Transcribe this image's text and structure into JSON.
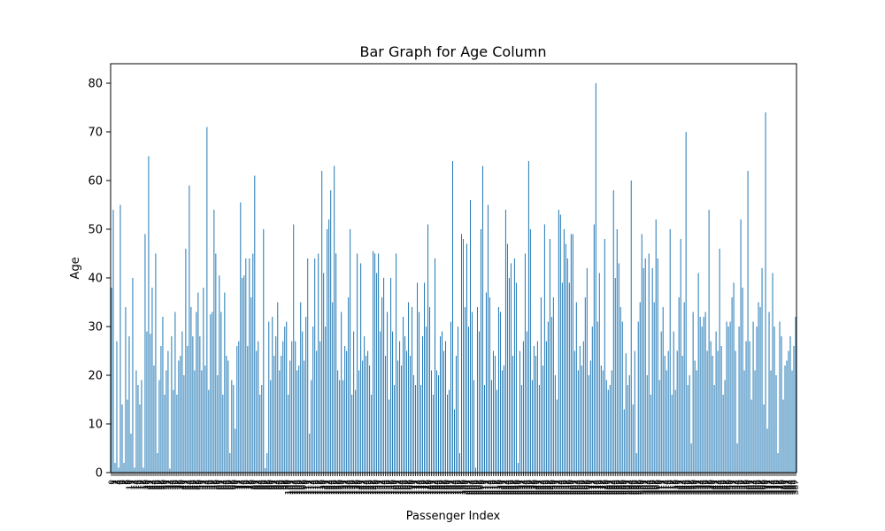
{
  "chart_data": {
    "type": "bar",
    "title": "Bar Graph for Age Column",
    "xlabel": "Passenger Index",
    "ylabel": "Age",
    "ylim": [
      0,
      84
    ],
    "yticks": [
      0,
      10,
      20,
      30,
      40,
      50,
      60,
      70,
      80
    ],
    "grid": false,
    "legend": "none",
    "bar_color": "#1f77b4",
    "series": [
      {
        "values": [
          38,
          54,
          2,
          27,
          1,
          55,
          14,
          2,
          34,
          15,
          28,
          8,
          40,
          1,
          21,
          18,
          14,
          19,
          1,
          49,
          29,
          65,
          28.5,
          38,
          22,
          45,
          4,
          19,
          26,
          32,
          16,
          21,
          25,
          0.83,
          28,
          17,
          33,
          16,
          23,
          24,
          29,
          20,
          46,
          26,
          59,
          34,
          28,
          21,
          33,
          37,
          28,
          21,
          38,
          22,
          71,
          17,
          32.5,
          33,
          54,
          45,
          20,
          40.5,
          33,
          16,
          37,
          24,
          23,
          4,
          19,
          18,
          9,
          26,
          27,
          55.5,
          40,
          40.5,
          44,
          26,
          44,
          36,
          45,
          61,
          25,
          27,
          16,
          18,
          50,
          0.92,
          4,
          31,
          19,
          32,
          24,
          28,
          35,
          21,
          24,
          27,
          30,
          31,
          16,
          23,
          27,
          51,
          27,
          21,
          22,
          35,
          29,
          23,
          32,
          44,
          8,
          19,
          30,
          44,
          25,
          45,
          27,
          62,
          41,
          30,
          50,
          52,
          58,
          35,
          63,
          45,
          21,
          19,
          33,
          19,
          26,
          25,
          36,
          50,
          16,
          29,
          17,
          45,
          21,
          43,
          23,
          28,
          24,
          25,
          22,
          16,
          45.5,
          45,
          41,
          45,
          29,
          36,
          40,
          24,
          33,
          15,
          40,
          29,
          18,
          45,
          23,
          27,
          22,
          32,
          28,
          25,
          35,
          24,
          34,
          20,
          18,
          39,
          33,
          18,
          28,
          39,
          30,
          51,
          34,
          21,
          16,
          44,
          21,
          20,
          28,
          29,
          25,
          27,
          16,
          17,
          31,
          64,
          13,
          24,
          30,
          4,
          49,
          48,
          34,
          47,
          30,
          56,
          33,
          19,
          1,
          34,
          29,
          50,
          63,
          18,
          37,
          55,
          36,
          19,
          25,
          24,
          17,
          34,
          33,
          21,
          22,
          54,
          47,
          40,
          43,
          24,
          44,
          39,
          2,
          25,
          18,
          27,
          45,
          29,
          64,
          50,
          19,
          26,
          24,
          27,
          18,
          36,
          22,
          51,
          27,
          31,
          48,
          32,
          36,
          20,
          15,
          54,
          53,
          39,
          50,
          47,
          44,
          39,
          49,
          49,
          25,
          35,
          21,
          26,
          22,
          27,
          36,
          42,
          20,
          23,
          30,
          51,
          80,
          31,
          41,
          22,
          21,
          48,
          19,
          17,
          18,
          21,
          58,
          40,
          50,
          43,
          34,
          31,
          13,
          24.5,
          18,
          20,
          60,
          14,
          25,
          4,
          31,
          35,
          49,
          42,
          44,
          20,
          45,
          16,
          42,
          35,
          52,
          44,
          19,
          29,
          34,
          24,
          21,
          25,
          50,
          16,
          29,
          17,
          25,
          36,
          48,
          24,
          35,
          70,
          18,
          20,
          6,
          33,
          23,
          21,
          41,
          32,
          30,
          32,
          33,
          25,
          54,
          27,
          24,
          18,
          29,
          25,
          46,
          26,
          16,
          19,
          31,
          30,
          31,
          36,
          39,
          25,
          6,
          30,
          52,
          38,
          21,
          27,
          62,
          27,
          15,
          31,
          21,
          30,
          35,
          34,
          42,
          14,
          74,
          9,
          33,
          21,
          41,
          30,
          20,
          4,
          31,
          28,
          15,
          22,
          23,
          25,
          28,
          21,
          26,
          32
        ]
      }
    ]
  }
}
